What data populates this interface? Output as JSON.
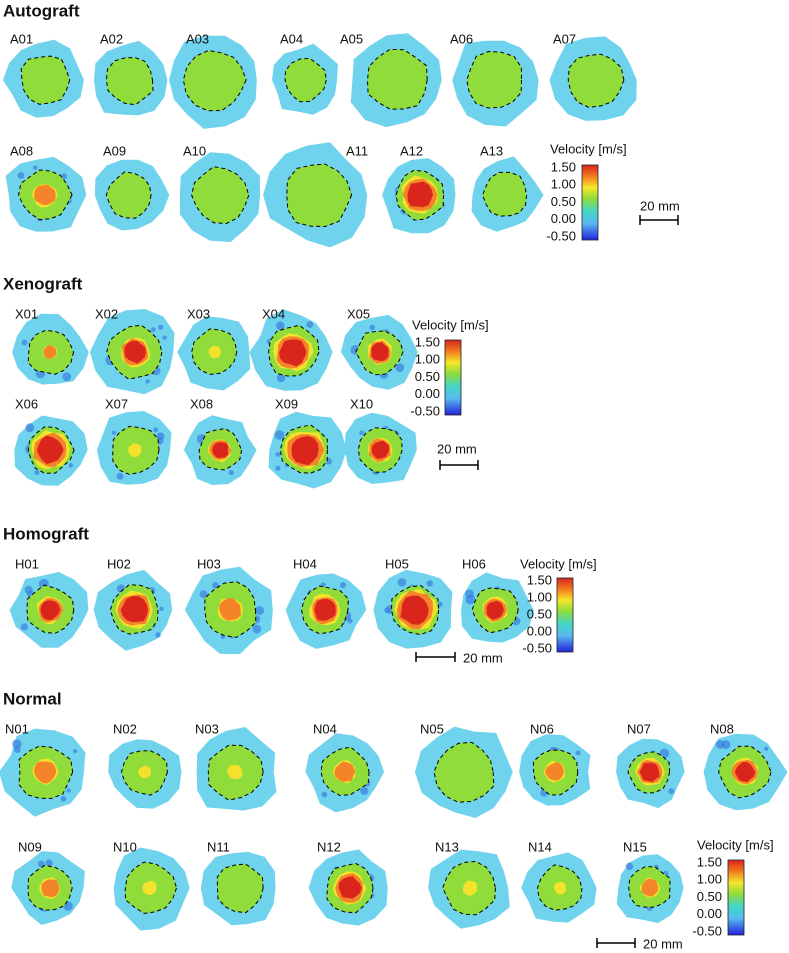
{
  "sections": [
    {
      "title": "Autograft",
      "rows": [
        [
          "A01",
          "A02",
          "A03",
          "A04",
          "A05",
          "A06",
          "A07"
        ],
        [
          "A08",
          "A09",
          "A10",
          "A11",
          "A12",
          "A13"
        ]
      ],
      "colorbar": {
        "title": "Velocity [m/s]",
        "ticks": [
          "1.50",
          "1.00",
          "0.50",
          "0.00",
          "-0.50"
        ]
      },
      "scale": "20 mm"
    },
    {
      "title": "Xenograft",
      "rows": [
        [
          "X01",
          "X02",
          "X03",
          "X04",
          "X05"
        ],
        [
          "X06",
          "X07",
          "X08",
          "X09",
          "X10"
        ]
      ],
      "colorbar": {
        "title": "Velocity [m/s]",
        "ticks": [
          "1.50",
          "1.00",
          "0.50",
          "0.00",
          "-0.50"
        ]
      },
      "scale": "20 mm"
    },
    {
      "title": "Homograft",
      "rows": [
        [
          "H01",
          "H02",
          "H03",
          "H04",
          "H05",
          "H06"
        ]
      ],
      "colorbar": {
        "title": "Velocity [m/s]",
        "ticks": [
          "1.50",
          "1.00",
          "0.50",
          "0.00",
          "-0.50"
        ]
      },
      "scale": "20 mm"
    },
    {
      "title": "Normal",
      "rows": [
        [
          "N01",
          "N02",
          "N03",
          "N04",
          "N05",
          "N06",
          "N07",
          "N08"
        ],
        [
          "N09",
          "N10",
          "N11",
          "N12",
          "N13",
          "N14",
          "N15"
        ]
      ],
      "colorbar": {
        "title": "Velocity [m/s]",
        "ticks": [
          "1.50",
          "1.00",
          "0.50",
          "0.00",
          "-0.50"
        ]
      },
      "scale": "20 mm"
    }
  ]
}
